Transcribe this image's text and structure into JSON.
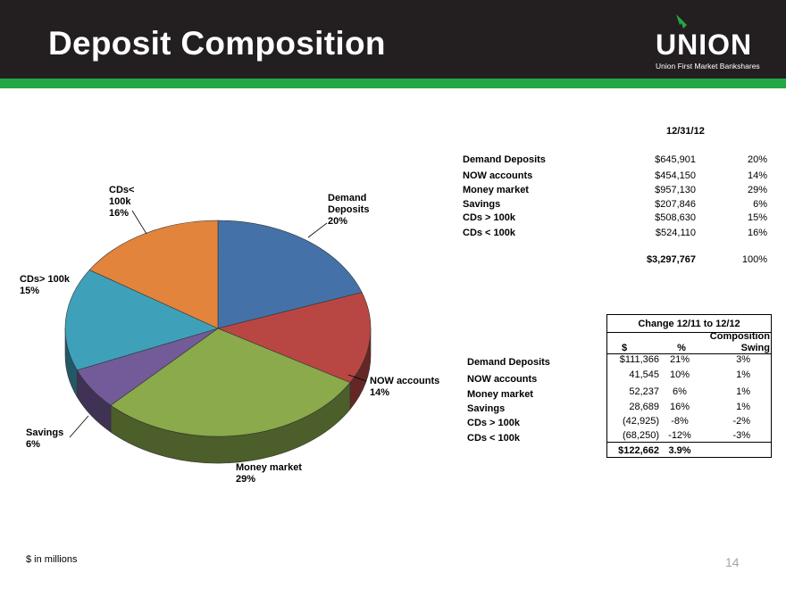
{
  "header": {
    "title": "Deposit Composition",
    "logo_word": "UNION",
    "logo_tagline": "Union First Market Bankshares"
  },
  "chart_data": {
    "type": "pie",
    "title": "",
    "slices": [
      {
        "label_lines": [
          "Demand",
          "Deposits",
          "20%"
        ],
        "name": "Demand Deposits",
        "value": 645901,
        "percent": 20,
        "color": "#4472a8"
      },
      {
        "label_lines": [
          "NOW accounts",
          "14%"
        ],
        "name": "NOW accounts",
        "value": 454150,
        "percent": 14,
        "color": "#b84743"
      },
      {
        "label_lines": [
          "Money market",
          "29%"
        ],
        "name": "Money market",
        "value": 957130,
        "percent": 29,
        "color": "#8aaa4b"
      },
      {
        "label_lines": [
          "Savings",
          "6%"
        ],
        "name": "Savings",
        "value": 207846,
        "percent": 6,
        "color": "#725b98"
      },
      {
        "label_lines": [
          "CDs> 100k",
          "15%"
        ],
        "name": "CDs > 100k",
        "value": 508630,
        "percent": 15,
        "color": "#3fa0ba"
      },
      {
        "label_lines": [
          "CDs<",
          "100k",
          "16%"
        ],
        "name": "CDs < 100k",
        "value": 524110,
        "percent": 16,
        "color": "#e2843b"
      }
    ]
  },
  "composition_table": {
    "date_header": "12/31/12",
    "rows": [
      {
        "name": "Demand Deposits",
        "amount": "$645,901",
        "pct": "20%"
      },
      {
        "name": "NOW accounts",
        "amount": "$454,150",
        "pct": "14%"
      },
      {
        "name": "Money market",
        "amount": "$957,130",
        "pct": "29%"
      },
      {
        "name": "Savings",
        "amount": "$207,846",
        "pct": "6%"
      },
      {
        "name": "CDs > 100k",
        "amount": "$508,630",
        "pct": "15%"
      },
      {
        "name": "CDs < 100k",
        "amount": "$524,110",
        "pct": "16%"
      }
    ],
    "total_amount": "$3,297,767",
    "total_pct": "100%"
  },
  "change_table": {
    "title": "Change 12/11 to 12/12",
    "col_dollar": "$",
    "col_pct": "%",
    "col_swing_1": "Composition",
    "col_swing_2": "Swing",
    "rows": [
      {
        "name": "Demand Deposits",
        "dollar": "$111,366",
        "pct": "21%",
        "swing": "3%"
      },
      {
        "name": "NOW accounts",
        "dollar": "41,545",
        "pct": "10%",
        "swing": "1%"
      },
      {
        "name": "Money market",
        "dollar": "52,237",
        "pct": "6%",
        "swing": "1%"
      },
      {
        "name": "Savings",
        "dollar": "28,689",
        "pct": "16%",
        "swing": "1%"
      },
      {
        "name": "CDs > 100k",
        "dollar": "(42,925)",
        "pct": "-8%",
        "swing": "-2%"
      },
      {
        "name": "CDs < 100k",
        "dollar": "(68,250)",
        "pct": "-12%",
        "swing": "-3%"
      }
    ],
    "total_dollar": "$122,662",
    "total_pct": "3.9%"
  },
  "footnote": "$ in millions",
  "page_number": "14"
}
